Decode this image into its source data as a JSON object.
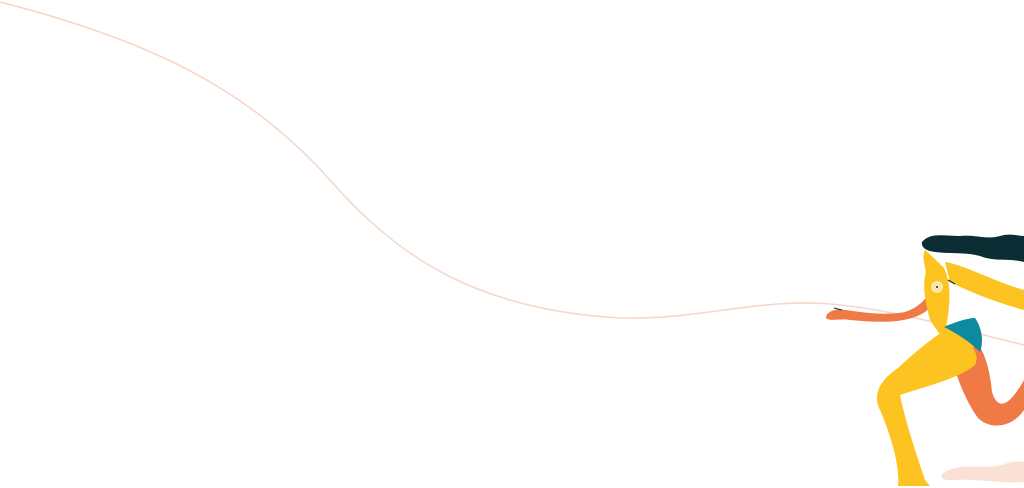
{
  "illustration": {
    "subject": "running-woman",
    "colors": {
      "line": "#f5d8cb",
      "skin_yellow": "#fdc421",
      "skin_orange": "#f07a45",
      "hair": "#0a2e33",
      "swimsuit": "#0e8aa0",
      "highlight": "#fde6a8",
      "shadow": "#fbe0d6"
    }
  }
}
